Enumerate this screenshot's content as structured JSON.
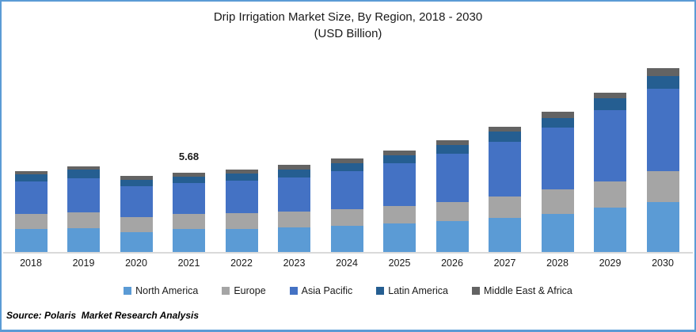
{
  "frame": {
    "border_color": "#5b9bd5",
    "background": "#ffffff",
    "axis_line_color": "#d9d9d9"
  },
  "title": {
    "line1": "Drip Irrigation Market Size, By Region, 2018 - 2030",
    "line2": "(USD Billion)"
  },
  "annotation": {
    "category": "2021",
    "value": "5.68"
  },
  "source": "Source: Polaris  Market Research Analysis",
  "legend": {
    "items": [
      {
        "label": "North America",
        "color": "#5b9bd5"
      },
      {
        "label": "Europe",
        "color": "#a5a5a5"
      },
      {
        "label": "Asia Pacific",
        "color": "#4472c4"
      },
      {
        "label": "Latin America",
        "color": "#255e91"
      },
      {
        "label": "Middle East & Africa",
        "color": "#636363"
      }
    ]
  },
  "chart_data": {
    "type": "bar",
    "stacked": true,
    "title": "Drip Irrigation Market Size, By Region, 2018 - 2030 (USD Billion)",
    "xlabel": "",
    "ylabel": "USD Billion",
    "categories": [
      "2018",
      "2019",
      "2020",
      "2021",
      "2022",
      "2023",
      "2024",
      "2025",
      "2026",
      "2027",
      "2028",
      "2029",
      "2030"
    ],
    "series": [
      {
        "name": "North America",
        "color": "#5b9bd5",
        "values": [
          1.65,
          1.7,
          1.42,
          1.62,
          1.62,
          1.77,
          1.86,
          2.03,
          2.19,
          2.44,
          2.73,
          3.16,
          3.6
        ]
      },
      {
        "name": "Europe",
        "color": "#a5a5a5",
        "values": [
          1.1,
          1.15,
          1.1,
          1.11,
          1.14,
          1.14,
          1.19,
          1.29,
          1.38,
          1.55,
          1.76,
          1.89,
          2.2
        ]
      },
      {
        "name": "Asia Pacific",
        "color": "#4472c4",
        "values": [
          2.31,
          2.44,
          2.22,
          2.19,
          2.33,
          2.46,
          2.73,
          3.03,
          3.49,
          3.9,
          4.43,
          5.15,
          5.9
        ]
      },
      {
        "name": "Latin America",
        "color": "#255e91",
        "values": [
          0.49,
          0.61,
          0.44,
          0.48,
          0.51,
          0.55,
          0.57,
          0.61,
          0.62,
          0.74,
          0.68,
          0.81,
          0.94
        ]
      },
      {
        "name": "Middle East & Africa",
        "color": "#636363",
        "values": [
          0.27,
          0.25,
          0.28,
          0.28,
          0.3,
          0.32,
          0.34,
          0.34,
          0.34,
          0.34,
          0.44,
          0.41,
          0.53
        ]
      }
    ],
    "totals": [
      5.82,
      6.15,
      5.46,
      5.68,
      5.9,
      6.24,
      6.69,
      7.3,
      8.02,
      8.97,
      10.04,
      11.42,
      13.17
    ],
    "data_labels": [
      {
        "category": "2021",
        "text": "5.68"
      }
    ],
    "ylim": [
      0,
      14
    ],
    "grid": false,
    "legend_position": "bottom"
  }
}
